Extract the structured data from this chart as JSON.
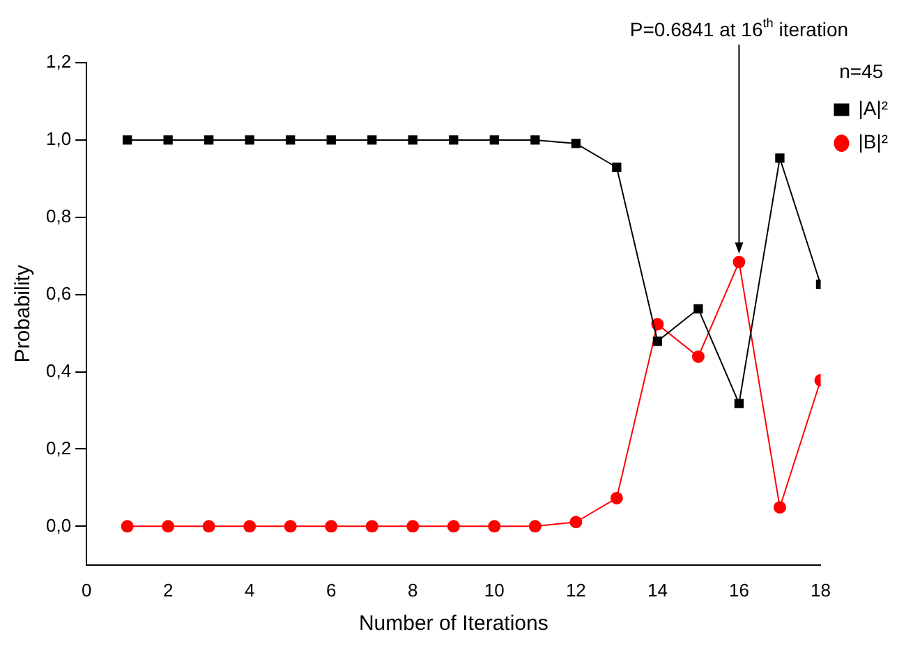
{
  "chart_data": {
    "type": "line",
    "xlabel": "Number of Iterations",
    "ylabel": "Probability",
    "legend_title": "n=45",
    "legend": "top right",
    "grid": false,
    "x": [
      1,
      2,
      3,
      4,
      5,
      6,
      7,
      8,
      9,
      10,
      11,
      12,
      13,
      14,
      15,
      16,
      17,
      18
    ],
    "series": [
      {
        "name": "|A|²",
        "color": "#000000",
        "marker": "square",
        "values": [
          1.0,
          1.0,
          1.0,
          1.0,
          1.0,
          1.0,
          1.0,
          1.0,
          1.0,
          1.0,
          1.0,
          0.991,
          0.929,
          0.479,
          0.563,
          0.318,
          0.953,
          0.626
        ]
      },
      {
        "name": "|B|²",
        "color": "#ff0000",
        "marker": "circle",
        "values": [
          0.0,
          0.0,
          0.0,
          0.0,
          0.0,
          0.0,
          0.0,
          0.0,
          0.0,
          0.0,
          0.0,
          0.011,
          0.073,
          0.523,
          0.439,
          0.6841,
          0.049,
          0.378
        ]
      }
    ],
    "xlim": [
      0,
      18
    ],
    "xticks": [
      0,
      2,
      4,
      6,
      8,
      10,
      12,
      14,
      16,
      18
    ],
    "ylim": [
      -0.1,
      1.2
    ],
    "yticks": [
      {
        "value": 0,
        "label": "0,0"
      },
      {
        "value": 0.2,
        "label": "0,2"
      },
      {
        "value": 0.4,
        "label": "0,4"
      },
      {
        "value": 0.6,
        "label": "0,6"
      },
      {
        "value": 0.8,
        "label": "0,8"
      },
      {
        "value": 1.0,
        "label": "1,0"
      },
      {
        "value": 1.2,
        "label": "1,2"
      }
    ],
    "annotations": [
      {
        "text": "P=0.6841 at 16$^{th}$ iteration",
        "x": 16,
        "y": 0.6841
      }
    ]
  }
}
